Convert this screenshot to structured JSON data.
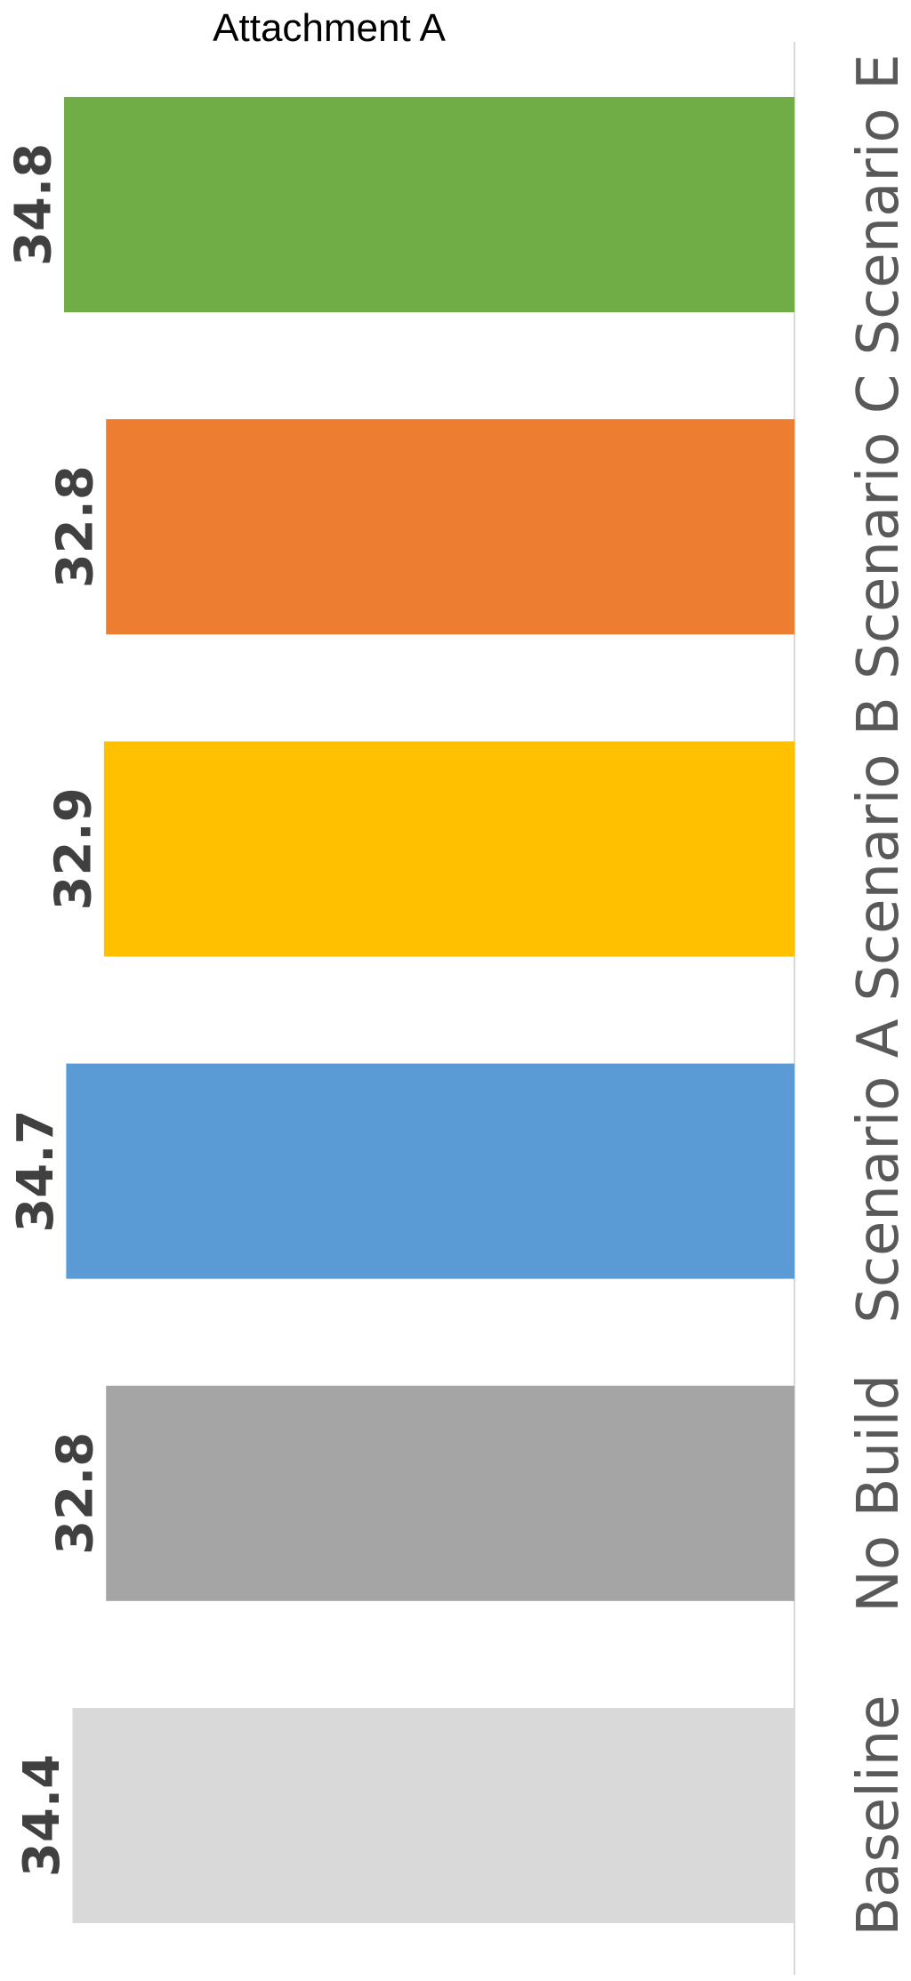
{
  "header": {
    "title": "Attachment A"
  },
  "chart_data": {
    "type": "bar",
    "orientation": "rotated-90",
    "categories": [
      "Scenario E",
      "Scenario C",
      "Scenario B",
      "Scenario A",
      "No Build",
      "Baseline"
    ],
    "values": [
      34.8,
      32.8,
      32.9,
      34.7,
      32.8,
      34.4
    ],
    "value_labels": [
      "34.8",
      "32.8",
      "32.9",
      "34.7",
      "32.8",
      "34.4"
    ],
    "colors": [
      "#70AD47",
      "#ED7D31",
      "#FFC000",
      "#5B9BD5",
      "#A5A5A5",
      "#D9D9D9"
    ],
    "value_axis": {
      "min": 0,
      "max": 36.2
    },
    "title": "",
    "xlabel": "",
    "ylabel": "",
    "grid": false,
    "legend": "none"
  }
}
